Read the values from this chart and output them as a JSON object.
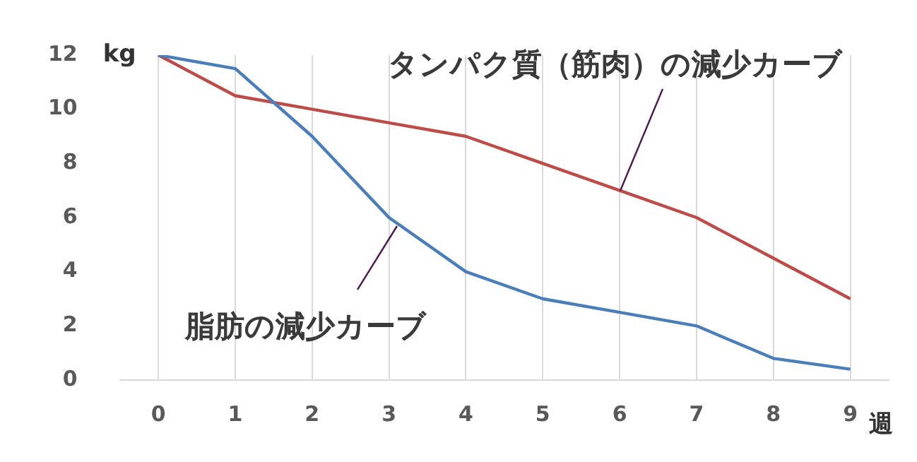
{
  "chart_data": {
    "type": "line",
    "xlabel": "週",
    "ylabel": "kg",
    "categories": [
      "0",
      "1",
      "2",
      "3",
      "4",
      "5",
      "6",
      "7",
      "8",
      "9"
    ],
    "series": [
      {
        "color": "#4a7ebb",
        "values": [
          12,
          11.5,
          9,
          6,
          4,
          3,
          2.5,
          2,
          0.8,
          0.4
        ]
      },
      {
        "color": "#be4b48",
        "values": [
          12,
          10.5,
          10,
          9.5,
          9,
          8,
          7,
          6,
          4.5,
          3
        ]
      }
    ],
    "ylim": [
      0,
      12
    ],
    "yticks": [
      0,
      2,
      4,
      6,
      8,
      10,
      12
    ],
    "grid": "x",
    "legend": false,
    "marker": "none",
    "line_style": "solid",
    "annotations": [
      {
        "text": "タンパク質（筋肉）の減少カーブ",
        "x": "6",
        "y": 7
      },
      {
        "text": "脂肪の減少カーブ",
        "x": "3",
        "y": 5.7
      }
    ]
  }
}
